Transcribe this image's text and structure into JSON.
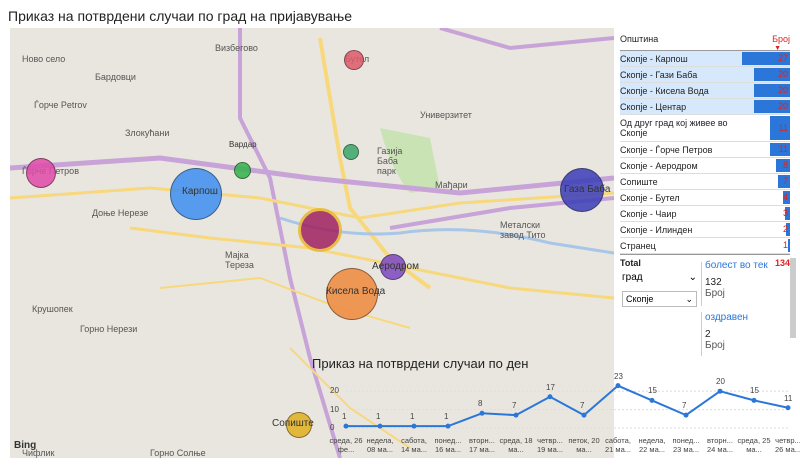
{
  "titles": {
    "map": "Приказ на потврдени случаи по град на пријавување",
    "daily": "Приказ на потврдени случаи по ден"
  },
  "map": {
    "labels": [
      "Визбегово",
      "Ново село",
      "Бардовци",
      "Ѓорче Petrov",
      "Злокућани",
      "Ѓорче Петров",
      "Дoње Нерезе",
      "Крушопек",
      "Горно Нерези",
      "Мајка Тереза",
      "Газија Баба парк",
      "Мађари",
      "Металски завод Тито",
      "Универзитет",
      "Бутел",
      "Чифлик",
      "Горно Солње"
    ],
    "bubbles": [
      {
        "label": "Бутел",
        "color": "#e05a6a"
      },
      {
        "label": "Карпош",
        "color": "#3d8ef0"
      },
      {
        "label": "Ѓорче Петров",
        "color": "#e04aa8"
      },
      {
        "label": "Газа Баба",
        "color": "#3b3eb8"
      },
      {
        "label": "Центар",
        "color": "#a02060"
      },
      {
        "label": "Аеродром",
        "color": "#7d48c0"
      },
      {
        "label": "Кисела Вода",
        "color": "#f08a3e"
      },
      {
        "label": "Сопиште",
        "color": "#e0b020"
      },
      {
        "label": "Чаир",
        "color": "#3aa76a"
      },
      {
        "label": "Вардар",
        "color": "#34b34a"
      }
    ],
    "bing": "Bing"
  },
  "table": {
    "col_name": "Општина",
    "col_count": "Број",
    "rows": [
      {
        "name": "Скопје - Карпош",
        "count": "27",
        "value": 27
      },
      {
        "name": "Скопје - Гази Баба",
        "count": "20",
        "value": 20
      },
      {
        "name": "Скопје - Кисела Вода",
        "count": "20",
        "value": 20
      },
      {
        "name": "Скопје - Центар",
        "count": "20",
        "value": 20
      },
      {
        "name": "Од друг град кој живее во Скопје",
        "count": "11",
        "value": 11
      },
      {
        "name": "Скопје - Ѓорче Петров",
        "count": "11",
        "value": 11
      },
      {
        "name": "Скопје - Аеродром",
        "count": "8",
        "value": 8
      },
      {
        "name": "Сопиште",
        "count": "7",
        "value": 7
      },
      {
        "name": "Скопје - Бутел",
        "count": "4",
        "value": 4
      },
      {
        "name": "Скопје - Чаир",
        "count": "3",
        "value": 3
      },
      {
        "name": "Скопје - Илинден",
        "count": "2",
        "value": 2
      },
      {
        "name": "Странец",
        "count": "1",
        "value": 1
      }
    ],
    "total_label": "Total",
    "total_value": "134"
  },
  "filter": {
    "label": "град",
    "value": "Скопје"
  },
  "cards": [
    {
      "label": "болест во тек",
      "value": "132",
      "unit": "Број"
    },
    {
      "label": "оздравен",
      "value": "2",
      "unit": "Број"
    }
  ],
  "chart_data": {
    "type": "line",
    "categories": [
      "среда, 26 фе...",
      "недела, 08 ма...",
      "сабота, 14 ма...",
      "понед... 16 ма...",
      "вторн... 17 ма...",
      "среда, 18 ма...",
      "четвр... 19 ма...",
      "петок, 20 ма...",
      "сабота, 21 ма...",
      "недела, 22 ма...",
      "понед... 23 ма...",
      "вторн... 24 ма...",
      "среда, 25 ма...",
      "четвр... 26 ма..."
    ],
    "values": [
      1,
      1,
      1,
      1,
      8,
      7,
      17,
      7,
      23,
      15,
      7,
      20,
      15,
      11
    ],
    "ylim": [
      0,
      25
    ],
    "yticks": [
      0,
      10,
      20
    ],
    "color": "#2b77d9"
  }
}
